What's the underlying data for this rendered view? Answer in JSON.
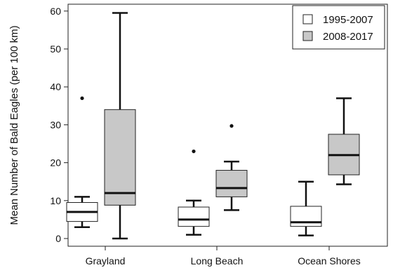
{
  "chart_data": {
    "type": "boxplot",
    "title": "",
    "xlabel": "",
    "ylabel": "Mean Number of Bald Eagles (per 100 km)",
    "ylim": [
      0,
      60
    ],
    "yticks": [
      0,
      10,
      20,
      30,
      40,
      50,
      60
    ],
    "grid": false,
    "legend_position": "top-right",
    "categories": [
      "Grayland",
      "Long Beach",
      "Ocean Shores"
    ],
    "series": [
      {
        "name": "1995-2007",
        "color": "#ffffff",
        "boxes": [
          {
            "whisker_low": 3,
            "q1": 4.5,
            "median": 7,
            "q3": 9.5,
            "whisker_high": 11,
            "outliers": [
              37
            ]
          },
          {
            "whisker_low": 1,
            "q1": 3.2,
            "median": 5,
            "q3": 8.3,
            "whisker_high": 10,
            "outliers": [
              23
            ]
          },
          {
            "whisker_low": 0.8,
            "q1": 3.2,
            "median": 4.3,
            "q3": 8.5,
            "whisker_high": 15,
            "outliers": []
          }
        ]
      },
      {
        "name": "2008-2017",
        "color": "#c8c8c8",
        "boxes": [
          {
            "whisker_low": 0,
            "q1": 8.8,
            "median": 12,
            "q3": 34,
            "whisker_high": 59.5,
            "outliers": []
          },
          {
            "whisker_low": 7.5,
            "q1": 11,
            "median": 13.3,
            "q3": 18,
            "whisker_high": 20.3,
            "outliers": [
              29.7
            ]
          },
          {
            "whisker_low": 14.3,
            "q1": 16.8,
            "median": 22,
            "q3": 27.5,
            "whisker_high": 37,
            "outliers": []
          }
        ]
      }
    ]
  }
}
